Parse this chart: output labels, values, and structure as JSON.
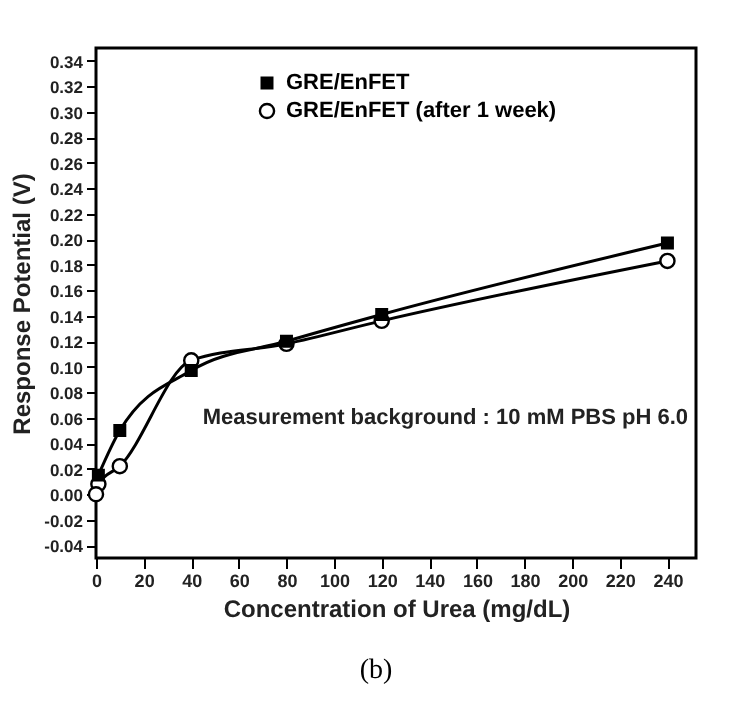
{
  "chart_data": {
    "type": "line",
    "xlabel": "Concentration of Urea (mg/dL)",
    "ylabel": "Response Potential (V)",
    "series": [
      {
        "name": "GRE/EnFET",
        "color": "#000000",
        "marker": "square",
        "x": [
          1,
          10,
          40,
          80,
          120,
          240
        ],
        "values": [
          0.015,
          0.05,
          0.097,
          0.12,
          0.141,
          0.197
        ]
      },
      {
        "name": "GRE/EnFET (after 1 week)",
        "color": "#000000",
        "marker": "circle",
        "x": [
          0,
          1,
          10,
          40,
          80,
          120,
          240
        ],
        "values": [
          0.0,
          0.008,
          0.022,
          0.105,
          0.118,
          0.136,
          0.183
        ]
      }
    ],
    "xlim": [
      0,
      252
    ],
    "xticks": [
      0,
      20,
      40,
      60,
      80,
      100,
      120,
      140,
      160,
      180,
      200,
      220,
      240
    ],
    "ylim": [
      -0.05,
      0.35
    ],
    "yticks": [
      {
        "value": -0.04,
        "label": "-0.04"
      },
      {
        "value": -0.02,
        "label": "-0.02"
      },
      {
        "value": 0,
        "label": "0.00"
      },
      {
        "value": 0.02,
        "label": "0.02"
      },
      {
        "value": 0.04,
        "label": "0.04"
      },
      {
        "value": 0.06,
        "label": "0.06"
      },
      {
        "value": 0.08,
        "label": "0.08"
      },
      {
        "value": 0.1,
        "label": "0.10"
      },
      {
        "value": 0.12,
        "label": "0.12"
      },
      {
        "value": 0.14,
        "label": "0.14"
      },
      {
        "value": 0.16,
        "label": "0.16"
      },
      {
        "value": 0.18,
        "label": "0.18"
      },
      {
        "value": 0.2,
        "label": "0.20"
      },
      {
        "value": 0.22,
        "label": "0.22"
      },
      {
        "value": 0.24,
        "label": "0.24"
      },
      {
        "value": 0.26,
        "label": "0.26"
      },
      {
        "value": 0.28,
        "label": "0.28"
      },
      {
        "value": 0.3,
        "label": "0.30"
      },
      {
        "value": 0.32,
        "label": "0.32"
      },
      {
        "value": 0.34,
        "label": "0.34"
      }
    ],
    "legend": "top left",
    "grid": false,
    "line_style": "solid",
    "annotations": [
      "Measurement background : 10 mM PBS pH 6.0",
      "(b)"
    ]
  }
}
